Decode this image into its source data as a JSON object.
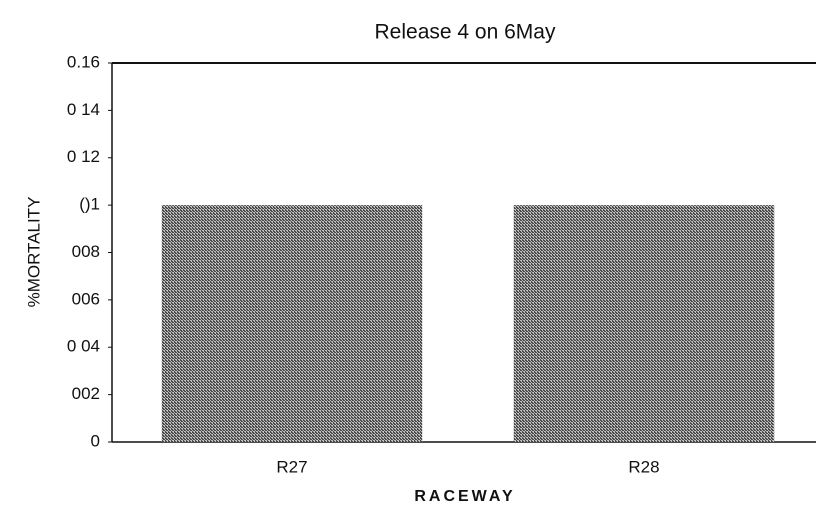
{
  "chart_data": {
    "type": "bar",
    "title": "Release 4 on 6May",
    "x_label": "RACEWAY",
    "y_label": "%MORTALITY",
    "categories": [
      "R27",
      "R28"
    ],
    "values": [
      0.1,
      0.1
    ],
    "color": "#4a4a4a",
    "ylim": [
      0,
      0.16
    ],
    "yticks": [
      0,
      {
        "value": 0.02,
        "label": "002"
      },
      {
        "value": 0.04,
        "label": "0 04"
      },
      {
        "value": 0.06,
        "label": "006"
      },
      {
        "value": 0.08,
        "label": "008"
      },
      {
        "value": 0.1,
        "label": "()1"
      },
      {
        "value": 0.12,
        "label": "0 12"
      },
      {
        "value": 0.14,
        "label": "0 14"
      },
      0.16
    ],
    "grid": false
  }
}
